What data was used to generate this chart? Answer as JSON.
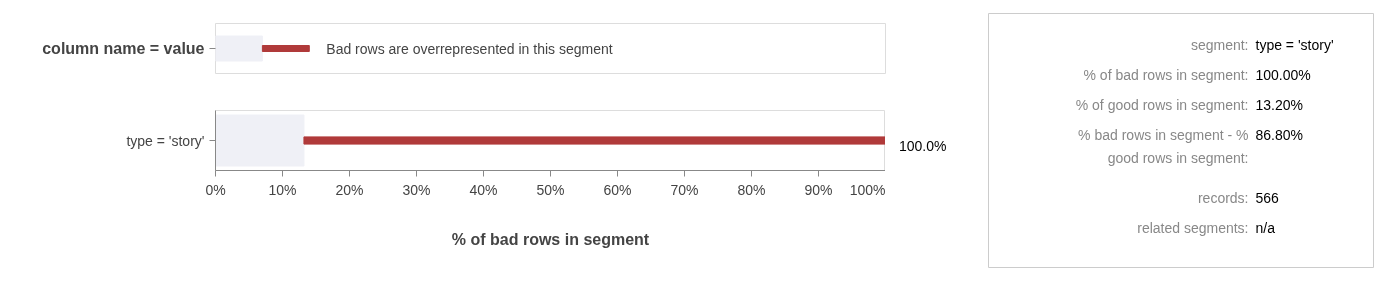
{
  "chart_data": [
    {
      "type": "bar",
      "orientation": "horizontal",
      "categories": [
        "column name = value"
      ],
      "xlim": [
        0,
        100
      ],
      "tick_labels": "y",
      "series": [
        {
          "type": "bar",
          "color": "#eff0f6",
          "values": [
            7
          ]
        },
        {
          "type": "bar",
          "color": "#b03a3a",
          "base": [
            7
          ],
          "values": [
            7
          ]
        }
      ],
      "annotations": [
        {
          "text": "Bad rows are overrepresented in this segment",
          "x": 14,
          "y": "column name = value"
        }
      ]
    },
    {
      "type": "bar",
      "orientation": "horizontal",
      "categories": [
        "type = 'story'"
      ],
      "xlim": [
        0,
        100
      ],
      "xticks": [
        {
          "value": 0,
          "label": "0%"
        },
        {
          "value": 10,
          "label": "10%"
        },
        {
          "value": 20,
          "label": "20%"
        },
        {
          "value": 30,
          "label": "30%"
        },
        {
          "value": 40,
          "label": "40%"
        },
        {
          "value": 50,
          "label": "50%"
        },
        {
          "value": 60,
          "label": "60%"
        },
        {
          "value": 70,
          "label": "70%"
        },
        {
          "value": 80,
          "label": "80%"
        },
        {
          "value": 90,
          "label": "90%"
        },
        {
          "value": 100,
          "label": "100%"
        }
      ],
      "xlabel": "% of bad rows in segment",
      "series": [
        {
          "type": "bar",
          "color": "#eff0f6",
          "values": [
            13.2
          ]
        },
        {
          "type": "bar",
          "color": "#b03a3a",
          "base": [
            13.2
          ],
          "values": [
            86.8
          ],
          "value_labels": [
            "100.0%"
          ]
        }
      ]
    },
    {
      "type": "other",
      "annotations": [
        "segment:",
        "type = 'story'",
        "% of bad rows in segment:",
        "100.00%",
        "% of good rows in segment:",
        "13.20%",
        "% bad rows in segment - % good rows in segment:",
        "86.80%",
        "records:",
        "566",
        "related segments:",
        "n/a"
      ]
    }
  ]
}
